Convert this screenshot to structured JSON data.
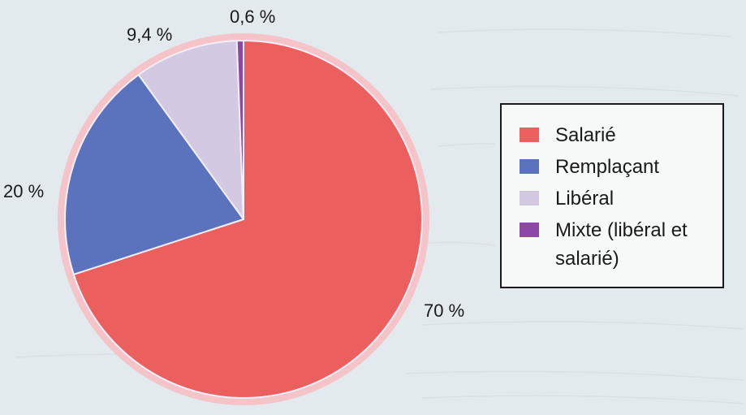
{
  "chart_data": {
    "type": "pie",
    "title": "",
    "slices": [
      {
        "label": "Salarié",
        "value": 70,
        "display": "70 %",
        "color": "#ec5f5f"
      },
      {
        "label": "Remplaçant",
        "value": 20,
        "display": "20 %",
        "color": "#5b73bd"
      },
      {
        "label": "Libéral",
        "value": 9.4,
        "display": "9,4 %",
        "color": "#d3c9e3"
      },
      {
        "label": "Mixte (libéral et salarié)",
        "value": 0.6,
        "display": "0,6 %",
        "color": "#8e47a7"
      }
    ],
    "legend": {
      "position": "right",
      "entries": [
        "Salarié",
        "Remplaçant",
        "Libéral",
        "Mixte (libéral et salarié)"
      ]
    },
    "ring_color": "#f5c4c9",
    "separator_color": "#f3eef7"
  }
}
